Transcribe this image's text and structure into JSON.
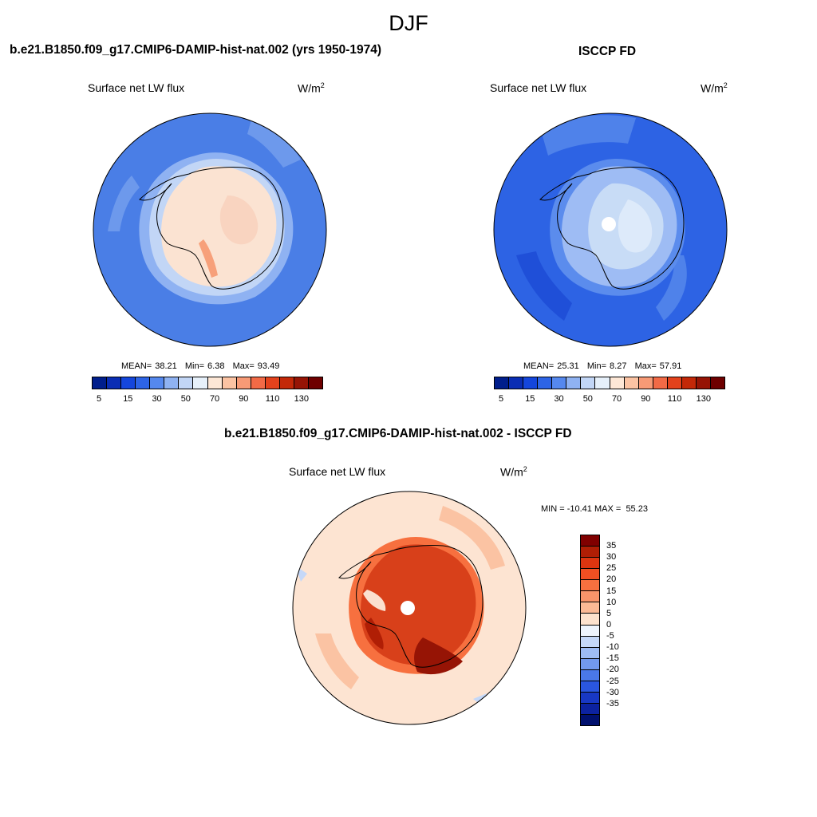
{
  "figure": {
    "title": "DJF"
  },
  "panels": [
    {
      "title": "b.e21.B1850.f09_g17.CMIP6-DAMIP-hist-nat.002 (yrs 1950-1974)",
      "variable": "Surface net LW flux",
      "units_base": "W/m",
      "units_sup": "2",
      "mean_label": "MEAN=",
      "mean_value": "38.21",
      "min_label": "Min=",
      "min_value": "6.38",
      "max_label": "Max=",
      "max_value": "93.49",
      "ocean_color": "#4a7ee6",
      "land_color": "#fbe3d2"
    },
    {
      "title": "ISCCP FD",
      "variable": "Surface net LW flux",
      "units_base": "W/m",
      "units_sup": "2",
      "mean_label": "MEAN=",
      "mean_value": "25.31",
      "min_label": "Min=",
      "min_value": "8.27",
      "max_label": "Max=",
      "max_value": "57.91",
      "ocean_color": "#2d63e4",
      "land_color": "#c8dcf6"
    }
  ],
  "abs_colorbar": {
    "colors": [
      "#001e8c",
      "#0a2db4",
      "#1446dc",
      "#2d64e6",
      "#5588ee",
      "#8fb2f2",
      "#c2d6f6",
      "#e6f0fa",
      "#fde7d6",
      "#fbc3a3",
      "#f79a76",
      "#f26a46",
      "#e3421c",
      "#c32808",
      "#961405",
      "#6e0000"
    ],
    "ticks": [
      "5",
      "15",
      "30",
      "50",
      "70",
      "90",
      "110",
      "130"
    ]
  },
  "difference": {
    "title": "b.e21.B1850.f09_g17.CMIP6-DAMIP-hist-nat.002 - ISCCP FD",
    "variable": "Surface net LW flux",
    "units_base": "W/m",
    "units_sup": "2",
    "min_label": "MIN =",
    "min_value": "-10.41",
    "max_label": "MAX =",
    "max_value": "55.23",
    "ocean_color": "#fde4d2",
    "land_color": "#d8401a",
    "colorbar": {
      "colors": [
        "#800000",
        "#b01e05",
        "#dd3510",
        "#f04f22",
        "#f7703f",
        "#f9946a",
        "#fbb995",
        "#fde2cd",
        "#eef4fc",
        "#c5d8f8",
        "#9ebcf4",
        "#7299ee",
        "#4a78e8",
        "#2a56e0",
        "#1838c4",
        "#0c22a0",
        "#00106e"
      ],
      "ticks": [
        "35",
        "30",
        "25",
        "20",
        "15",
        "10",
        "5",
        "0",
        "-5",
        "-10",
        "-15",
        "-20",
        "-25",
        "-30",
        "-35"
      ]
    }
  }
}
